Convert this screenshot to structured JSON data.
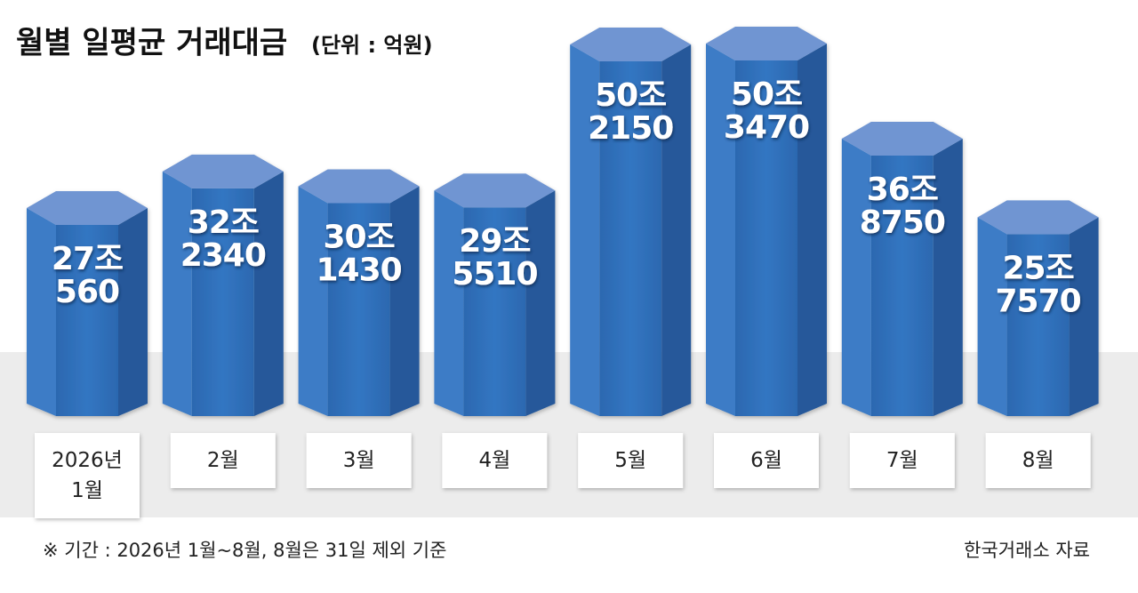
{
  "chart_data": {
    "type": "prism-bar",
    "title": "월별 일평균 거래대금",
    "subtitle": "(단위 : 억원)",
    "categories": [
      "2026년\n1월",
      "2월",
      "3월",
      "4월",
      "5월",
      "6월",
      "7월",
      "8월"
    ],
    "values": [
      270560,
      322340,
      301430,
      295510,
      502150,
      503470,
      368750,
      257570
    ],
    "value_labels": [
      "27조\n560",
      "32조\n2340",
      "30조\n1430",
      "29조\n5510",
      "50조\n2150",
      "50조\n3470",
      "36조\n8750",
      "25조\n7570"
    ],
    "color": "#2e6db7",
    "footnote": "※ 기간 : 2026년 1월~8월, 8월은 31일 제외 기준",
    "source": "한국거래소 자료"
  }
}
